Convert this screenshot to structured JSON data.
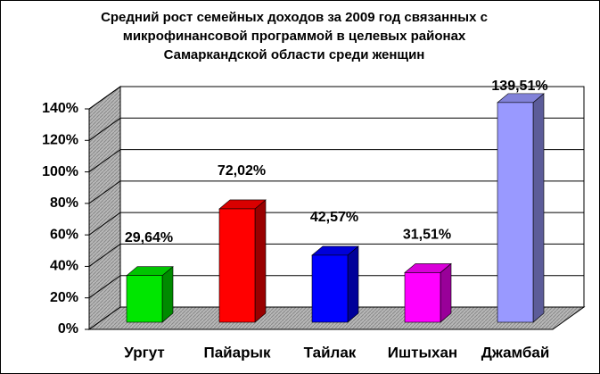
{
  "chart_data": {
    "type": "bar3d",
    "title": [
      "Средний рост семейных доходов  за 2009 год связанных с",
      "микрофинансовой программой в целевых районах",
      "Самаркандской области среди женщин"
    ],
    "categories": [
      "Ургут",
      "Пайарык",
      "Тайлак",
      "Иштыхан",
      "Джамбай"
    ],
    "values": [
      29.64,
      72.02,
      42.57,
      31.51,
      139.51
    ],
    "value_labels": [
      "29,64%",
      "72,02%",
      "42,57%",
      "31,51%",
      "139,51%"
    ],
    "colors": [
      "#00e600",
      "#ff0000",
      "#0000ff",
      "#ff00ff",
      "#9999ff"
    ],
    "ylim": [
      0,
      140
    ],
    "yticks": [
      {
        "value": 0,
        "label": "0%"
      },
      {
        "value": 20,
        "label": "20%"
      },
      {
        "value": 40,
        "label": "40%"
      },
      {
        "value": 60,
        "label": "60%"
      },
      {
        "value": 80,
        "label": "80%"
      },
      {
        "value": 100,
        "label": "100%"
      },
      {
        "value": 120,
        "label": "120%"
      },
      {
        "value": 140,
        "label": "140%"
      }
    ],
    "grid": true
  }
}
